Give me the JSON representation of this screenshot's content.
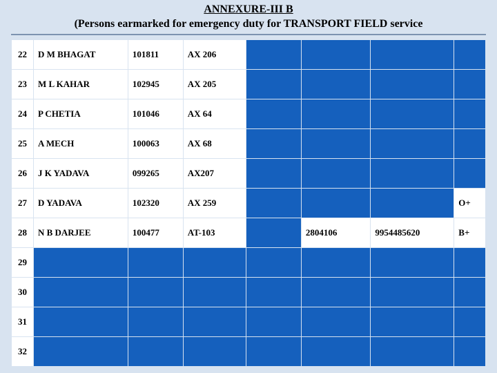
{
  "header": {
    "title": "ANNEXURE-III B",
    "subtitle": "(Persons earmarked for emergency duty for TRANSPORT FIELD service"
  },
  "table": {
    "background_color": "#d8e3f0",
    "cell_empty_bg": "#1560bd",
    "cell_filled_bg": "#ffffff",
    "border_color": "#d8e3f0",
    "columns": 8,
    "rows": [
      {
        "sn": "22",
        "name": "D M BHAGAT",
        "id": "101811",
        "code": "AX 206",
        "c4": "",
        "c5": "",
        "c6": "",
        "c7": ""
      },
      {
        "sn": "23",
        "name": "M L KAHAR",
        "id": "102945",
        "code": "AX 205",
        "c4": "",
        "c5": "",
        "c6": "",
        "c7": ""
      },
      {
        "sn": "24",
        "name": "P CHETIA",
        "id": "101046",
        "code": "AX 64",
        "c4": "",
        "c5": "",
        "c6": "",
        "c7": ""
      },
      {
        "sn": "25",
        "name": "A MECH",
        "id": "100063",
        "code": "AX 68",
        "c4": "",
        "c5": "",
        "c6": "",
        "c7": ""
      },
      {
        "sn": "26",
        "name": "J K YADAVA",
        "id": "099265",
        "code": "AX207",
        "c4": "",
        "c5": "",
        "c6": "",
        "c7": ""
      },
      {
        "sn": "27",
        "name": "D YADAVA",
        "id": "102320",
        "code": "AX 259",
        "c4": "",
        "c5": "",
        "c6": "",
        "c7": "O+"
      },
      {
        "sn": "28",
        "name": "N B DARJEE",
        "id": "100477",
        "code": "AT-103",
        "c4": "",
        "c5": "2804106",
        "c6": "9954485620",
        "c7": "B+"
      },
      {
        "sn": "29",
        "name": "",
        "id": "",
        "code": "",
        "c4": "",
        "c5": "",
        "c6": "",
        "c7": ""
      },
      {
        "sn": "30",
        "name": "",
        "id": "",
        "code": "",
        "c4": "",
        "c5": "",
        "c6": "",
        "c7": ""
      },
      {
        "sn": "31",
        "name": "",
        "id": "",
        "code": "",
        "c4": "",
        "c5": "",
        "c6": "",
        "c7": ""
      },
      {
        "sn": "32",
        "name": "",
        "id": "",
        "code": "",
        "c4": "",
        "c5": "",
        "c6": "",
        "c7": ""
      }
    ]
  }
}
